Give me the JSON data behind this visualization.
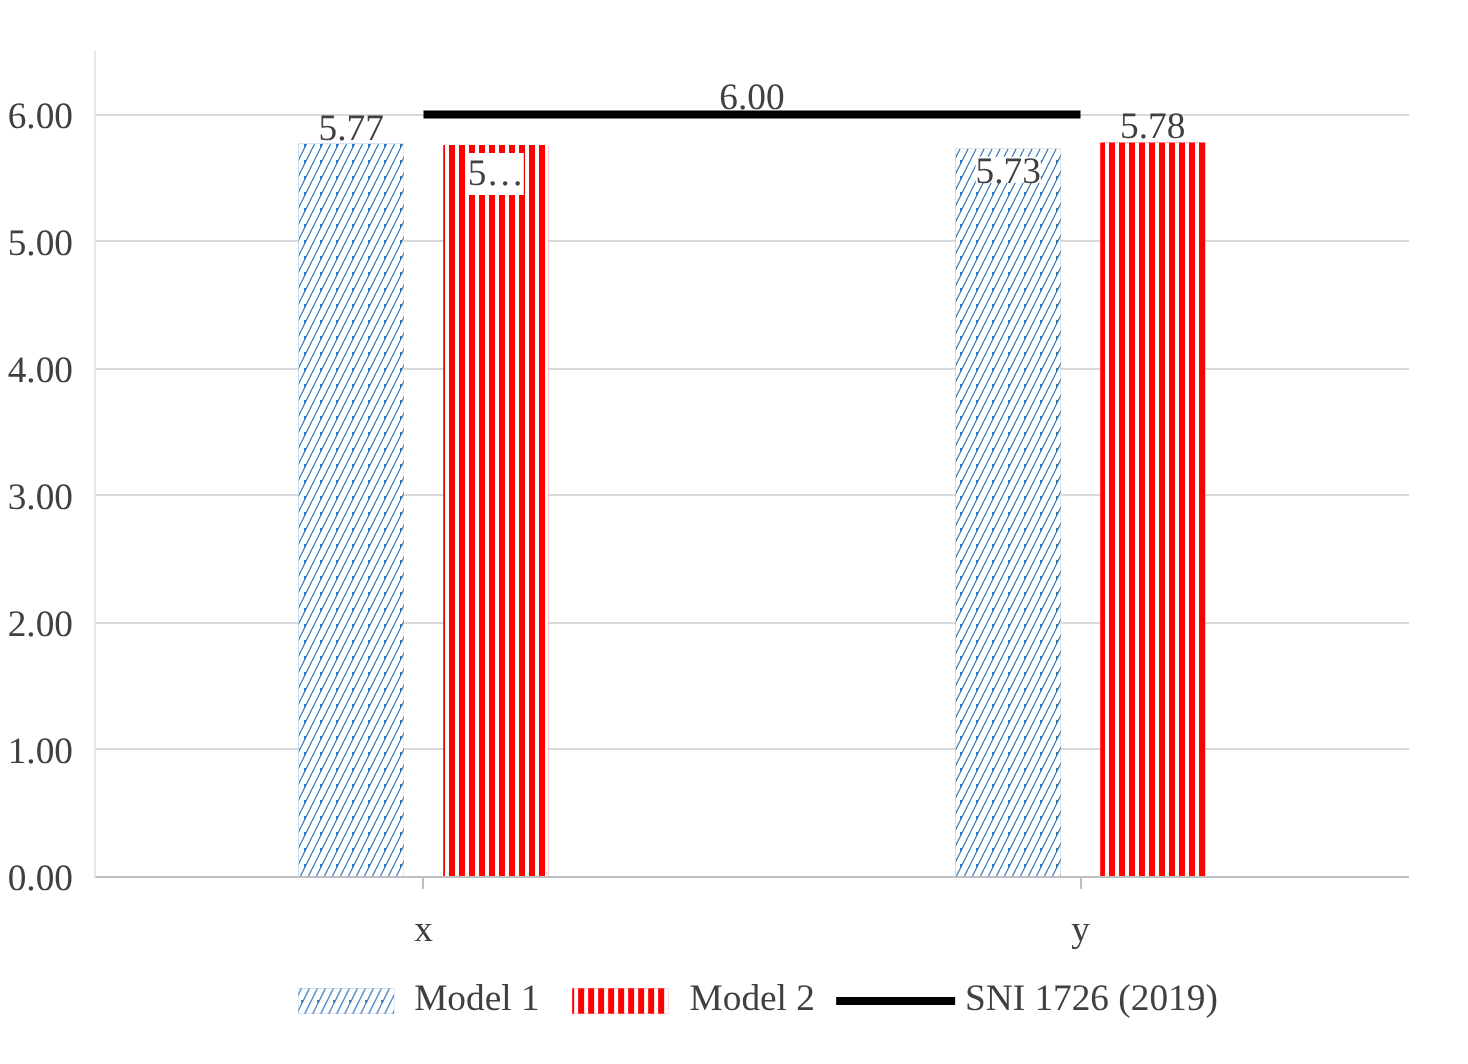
{
  "chart_data": {
    "type": "bar",
    "categories": [
      "x",
      "y"
    ],
    "series": [
      {
        "name": "Model 1",
        "color": "#2e75b6",
        "values": [
          5.77,
          5.73
        ],
        "value_labels": [
          "5.77",
          "5.73"
        ]
      },
      {
        "name": "Model 2",
        "color": "#ff0000",
        "values": [
          5.76,
          5.78
        ],
        "value_labels": [
          "5…",
          "5.78"
        ]
      },
      {
        "name": "SNI 1726 (2019)",
        "type": "line",
        "color": "#000000",
        "values": [
          6.0,
          6.0
        ]
      }
    ],
    "annotations": [
      {
        "text": "6.00",
        "y": 6.0
      }
    ],
    "ylim": [
      0,
      6.5
    ],
    "yticks": [
      {
        "value": 0,
        "label": "0.00"
      },
      {
        "value": 1,
        "label": "1.00"
      },
      {
        "value": 2,
        "label": "2.00"
      },
      {
        "value": 3,
        "label": "3.00"
      },
      {
        "value": 4,
        "label": "4.00"
      },
      {
        "value": 5,
        "label": "5.00"
      },
      {
        "value": 6,
        "label": "6.00"
      }
    ],
    "grid": "y",
    "legend": "bottom"
  }
}
